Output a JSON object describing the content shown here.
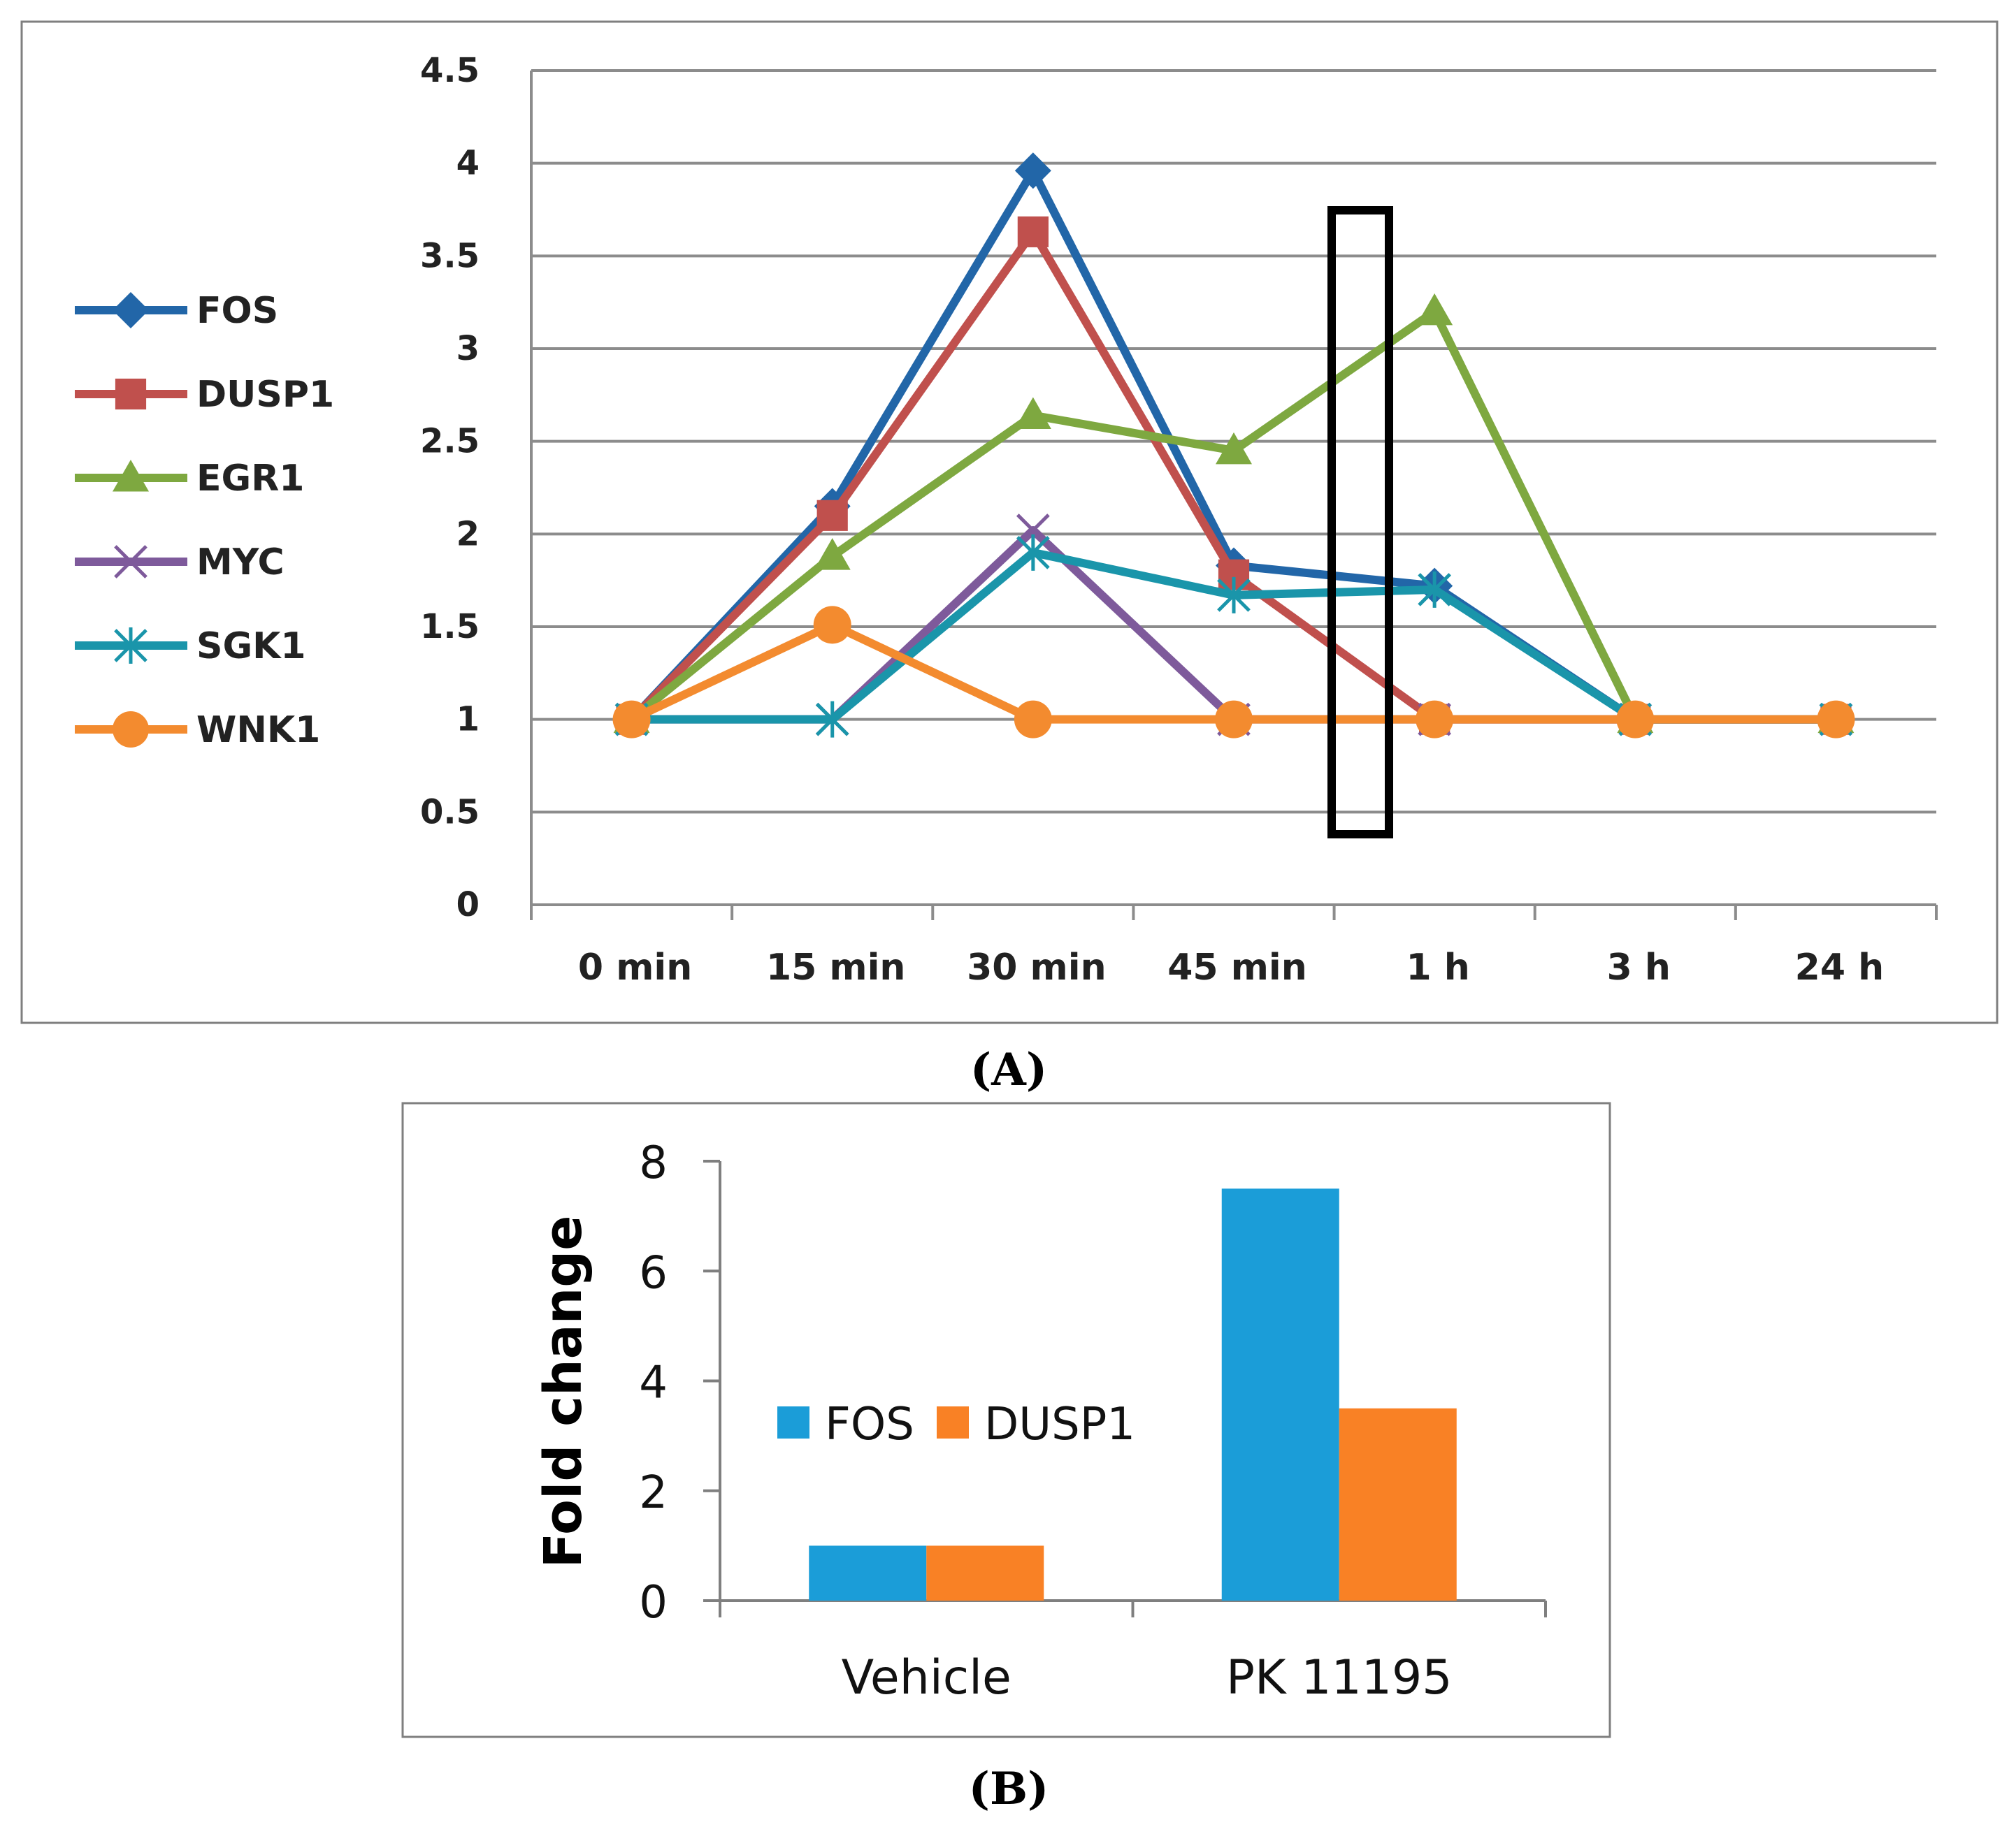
{
  "captions": {
    "a": "(A)",
    "b": "(B)"
  },
  "colors": {
    "FOS": "#2266a8",
    "DUSP1": "#c0504d",
    "EGR1": "#7ea840",
    "MYC": "#7e5a9b",
    "SGK1": "#1a95aa",
    "WNK1": "#f38b2f",
    "bar_fos": "#1b9dd8",
    "bar_dusp1": "#f98125"
  },
  "chart_data": [
    {
      "type": "line",
      "panel": "A",
      "title": "",
      "xlabel": "",
      "ylabel": "",
      "x": [
        "0 min",
        "15 min",
        "30 min",
        "45 min",
        "1 h",
        "3 h",
        "24 h"
      ],
      "ylim": [
        0,
        4.5
      ],
      "yticks": [
        "0",
        "0.5",
        "1",
        "1.5",
        "2",
        "2.5",
        "3",
        "3.5",
        "4",
        "4.5"
      ],
      "grid": true,
      "legend": "left",
      "annotation": "rectangle highlighting the interval between 45 min and 1 h",
      "series": [
        {
          "name": "FOS",
          "marker": "diamond",
          "values": [
            1,
            2.15,
            3.96,
            1.83,
            1.72,
            1,
            1
          ]
        },
        {
          "name": "DUSP1",
          "marker": "square",
          "values": [
            1,
            2.1,
            3.63,
            1.78,
            1,
            1,
            1
          ]
        },
        {
          "name": "EGR1",
          "marker": "triangle",
          "values": [
            1,
            1.88,
            2.64,
            2.45,
            3.2,
            1,
            1
          ]
        },
        {
          "name": "MYC",
          "marker": "x",
          "values": [
            1,
            1,
            2.02,
            1,
            1,
            1,
            1
          ]
        },
        {
          "name": "SGK1",
          "marker": "star",
          "values": [
            1,
            1,
            1.9,
            1.67,
            1.7,
            1,
            1
          ]
        },
        {
          "name": "WNK1",
          "marker": "circle",
          "values": [
            1,
            1.51,
            1,
            1,
            1,
            1,
            1
          ]
        }
      ]
    },
    {
      "type": "bar",
      "panel": "B",
      "title": "",
      "xlabel": "",
      "ylabel": "Fold change",
      "categories": [
        "Vehicle",
        "PK 11195"
      ],
      "ylim": [
        0,
        8
      ],
      "yticks": [
        "0",
        "2",
        "4",
        "6",
        "8"
      ],
      "grid": false,
      "legend": "center-left",
      "series": [
        {
          "name": "FOS",
          "values": [
            1,
            7.5
          ]
        },
        {
          "name": "DUSP1",
          "values": [
            1,
            3.5
          ]
        }
      ]
    }
  ]
}
